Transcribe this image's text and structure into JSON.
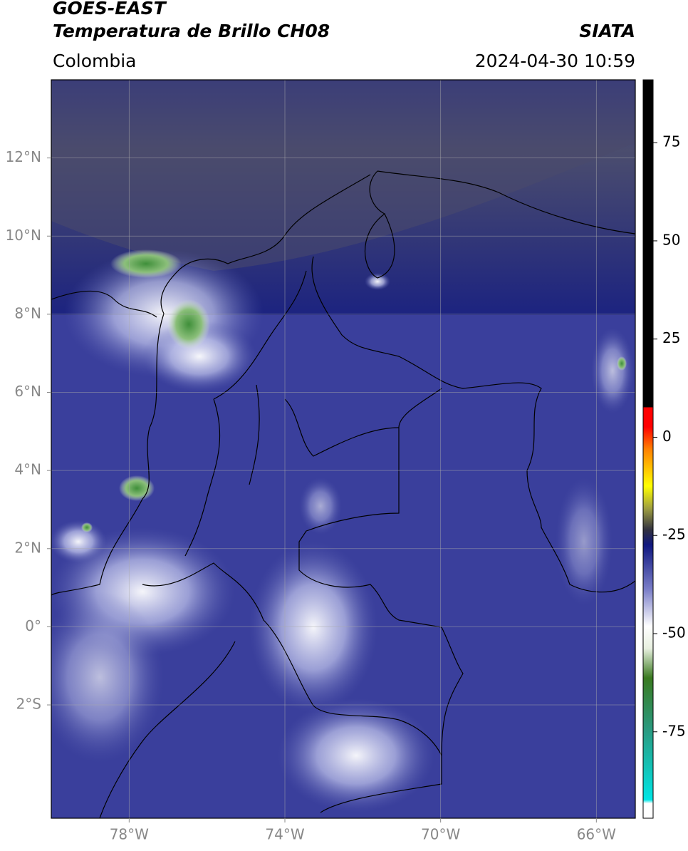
{
  "header": {
    "title_line1": "GOES-EAST",
    "title_line2": "Temperatura de Brillo CH08",
    "region": "Colombia",
    "source": "SIATA",
    "datetime": "2024-04-30 10:59"
  },
  "map": {
    "xlim": [
      -80,
      -65
    ],
    "ylim": [
      -4.9,
      14
    ],
    "xticks": [
      {
        "value": -78,
        "label": "78°W"
      },
      {
        "value": -74,
        "label": "74°W"
      },
      {
        "value": -70,
        "label": "70°W"
      },
      {
        "value": -66,
        "label": "66°W"
      }
    ],
    "yticks": [
      {
        "value": 12,
        "label": "12°N"
      },
      {
        "value": 10,
        "label": "10°N"
      },
      {
        "value": 8,
        "label": "8°N"
      },
      {
        "value": 6,
        "label": "6°N"
      },
      {
        "value": 4,
        "label": "4°N"
      },
      {
        "value": 2,
        "label": "2°N"
      },
      {
        "value": 0,
        "label": "0°"
      },
      {
        "value": -2,
        "label": "2°S"
      }
    ]
  },
  "colorbar": {
    "lim": [
      -97,
      91
    ],
    "ticks": [
      75,
      50,
      25,
      0,
      -25,
      -50,
      -75
    ]
  }
}
